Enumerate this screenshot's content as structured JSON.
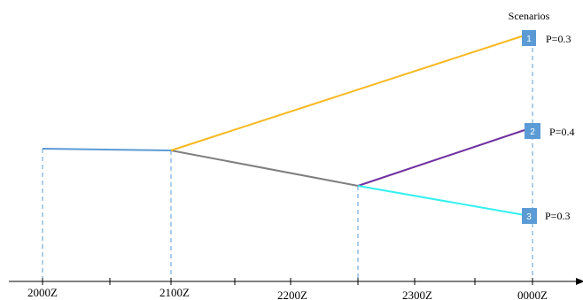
{
  "diagram": {
    "heading": "Scenarios",
    "axis_ticks": [
      "2000Z",
      "2100Z",
      "2200Z",
      "2300Z",
      "0000Z"
    ],
    "scenarios": [
      {
        "number": "1",
        "probability": "P=0.3"
      },
      {
        "number": "2",
        "probability": "P=0.4"
      },
      {
        "number": "3",
        "probability": "P=0.3"
      }
    ],
    "colors": {
      "initial_branch": "#5b9bd5",
      "shared_branch": "#7f7f7f",
      "scenario_1": "#f7b81e",
      "scenario_2": "#7030a0",
      "scenario_3": "#33f0f0",
      "guide_lines": "#5b9bd5",
      "box_fill": "#5b9bd5",
      "axis": "#000000"
    }
  }
}
